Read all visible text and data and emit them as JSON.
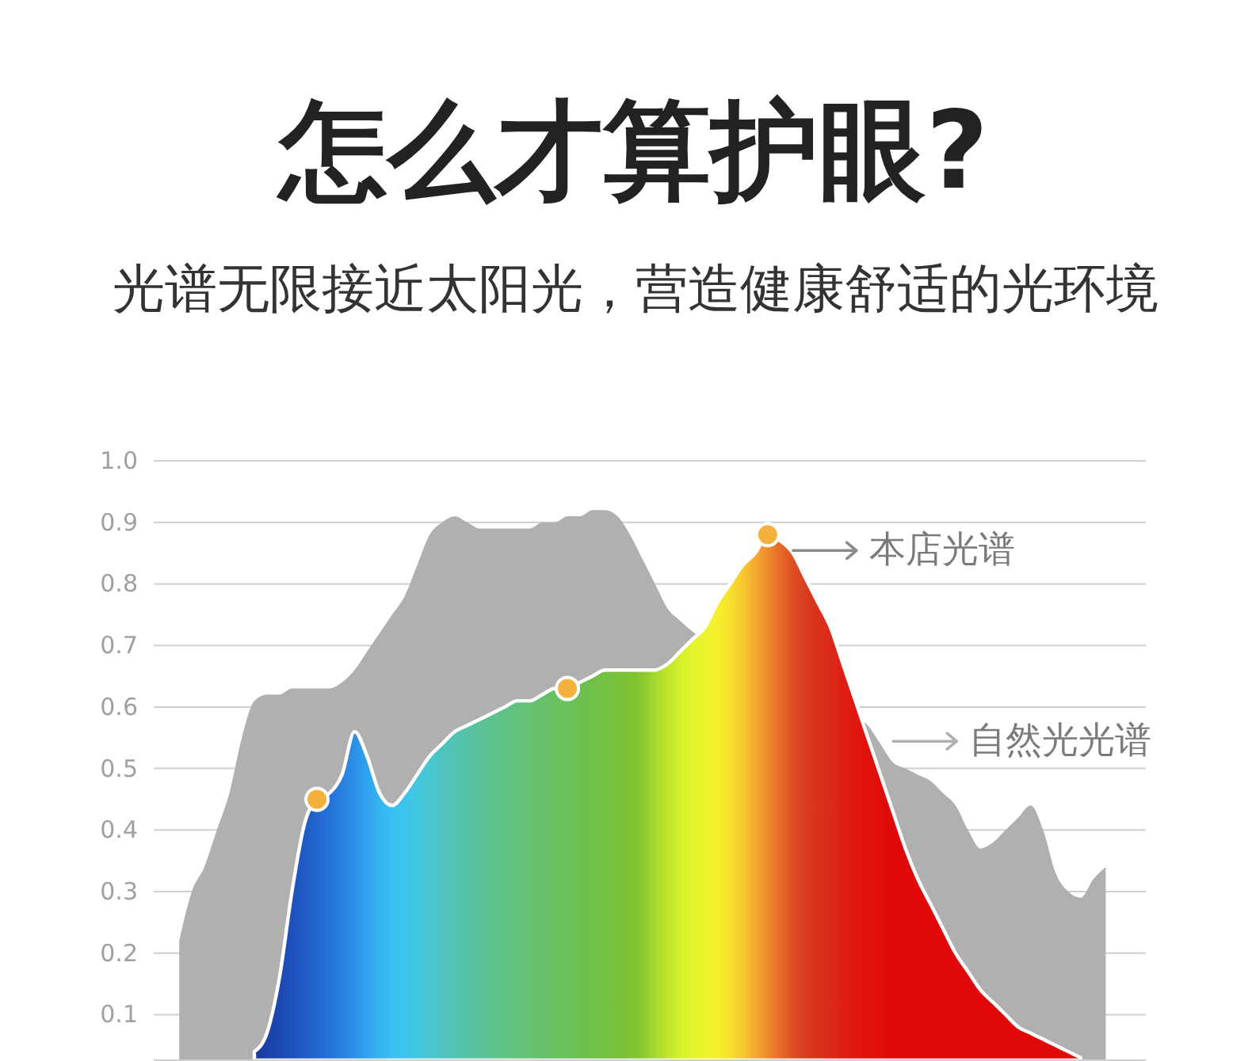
{
  "chart_data": {
    "type": "area",
    "title": "怎么才算护眼?",
    "subtitle": "光谱无限接近太阳光，营造健康舒适的光环境",
    "categories": [
      null,
      null,
      null,
      null,
      null,
      null,
      null,
      null,
      null,
      null,
      null,
      null,
      null,
      null,
      null,
      null,
      null,
      null,
      null,
      null,
      null,
      null,
      null,
      null,
      null,
      null,
      null,
      null,
      null,
      null,
      null,
      null,
      null,
      null,
      null,
      null,
      null,
      null,
      null,
      null,
      null,
      null,
      null,
      null,
      null,
      null,
      null,
      null,
      null,
      null,
      null,
      null,
      null,
      null,
      null,
      null,
      null,
      null,
      null,
      null,
      null,
      null,
      null,
      null,
      null,
      null,
      null,
      null,
      null,
      null,
      null,
      null,
      null,
      null,
      null
    ],
    "ylim": [
      0.026,
      1.0
    ],
    "yticks": [
      0.1,
      0.2,
      0.3,
      0.4,
      0.5,
      0.6,
      0.7,
      0.8,
      0.9,
      {
        "value": 1.0,
        "label": "1.0"
      }
    ],
    "grid": "y",
    "legend": "top right",
    "series": [
      {
        "name": "自然光光谱",
        "color": "#b0b0b0",
        "values": [
          0.22,
          0.3,
          0.34,
          0.4,
          0.46,
          0.55,
          0.61,
          0.62,
          0.62,
          0.63,
          0.63,
          0.63,
          0.63,
          0.64,
          0.66,
          0.69,
          0.72,
          0.75,
          0.78,
          0.83,
          0.88,
          0.9,
          0.91,
          0.9,
          0.89,
          0.89,
          0.89,
          0.89,
          0.89,
          0.9,
          0.9,
          0.91,
          0.91,
          0.92,
          0.92,
          0.91,
          0.88,
          0.84,
          0.8,
          0.76,
          0.74,
          null,
          null,
          null,
          null,
          null,
          null,
          null,
          null,
          null,
          null,
          null,
          null,
          null,
          null,
          0.57,
          0.54,
          0.51,
          0.5,
          0.49,
          0.48,
          0.46,
          0.44,
          0.4,
          0.37,
          0.38,
          0.4,
          0.42,
          0.44,
          0.4,
          0.33,
          0.3,
          0.29,
          0.32,
          0.34
        ]
      },
      {
        "name": "本店光谱",
        "values": [
          null,
          null,
          null,
          null,
          null,
          null,
          0.04,
          0.07,
          0.16,
          0.3,
          0.41,
          0.45,
          0.46,
          0.49,
          0.56,
          0.52,
          0.46,
          0.44,
          0.46,
          0.49,
          0.52,
          0.54,
          0.56,
          0.57,
          0.58,
          0.59,
          0.6,
          0.61,
          0.61,
          0.62,
          0.63,
          0.63,
          0.64,
          0.65,
          0.66,
          0.66,
          0.66,
          0.66,
          0.66,
          0.67,
          0.69,
          0.71,
          0.73,
          0.77,
          0.8,
          0.83,
          0.85,
          0.88,
          0.87,
          0.85,
          0.81,
          0.77,
          0.73,
          0.67,
          0.61,
          0.55,
          0.49,
          0.43,
          0.37,
          0.32,
          0.28,
          0.24,
          0.2,
          0.17,
          0.14,
          0.12,
          0.1,
          0.08,
          0.07,
          0.06,
          0.05,
          0.04,
          0.03,
          null,
          null
        ],
        "colors": [
          null,
          null,
          null,
          null,
          null,
          null,
          "#1a3a9e",
          "#1b40a8",
          "#1c48b2",
          "#1d52bc",
          "#1f5cc6",
          "#2166cf",
          "#2472d8",
          "#2880e0",
          "#2c90e6",
          "#30a2ec",
          "#34b4f0",
          "#38c0f2",
          "#3cc4ee",
          "#42c6e0",
          "#48c6d0",
          "#4ec4c0",
          "#52c4b2",
          "#56c2a4",
          "#5ac298",
          "#5ec28c",
          "#60c282",
          "#62c27a",
          "#64c272",
          "#66c06a",
          "#68c062",
          "#6ac05a",
          "#6cc052",
          "#70c04a",
          "#74c042",
          "#78c03a",
          "#7cc232",
          "#8ac82e",
          "#a4d82c",
          "#c0e62a",
          "#d4f02a",
          "#e2f42c",
          "#eef42e",
          "#f6f02e",
          "#f8e02e",
          "#f6c830",
          "#f4aa30",
          "#ee8a2c",
          "#e66a28",
          "#de4e24",
          "#da3c20",
          "#da321c",
          "#dc2a18",
          "#de2014",
          "#e01810",
          "#e0120c",
          "#e00e0a",
          "#e00808",
          "#e00808",
          "#e00808",
          "#e00808",
          "#e00808",
          "#e00808",
          "#e00808",
          "#e00808",
          "#e00808",
          "#e00808",
          "#e00808",
          "#e00808",
          "#e00808",
          "#e00808",
          "#e00808",
          "#e00808",
          null,
          null
        ]
      },
      {
        "type": "scatter",
        "color": "#f5b13d",
        "marker": "circle",
        "values": [
          null,
          null,
          null,
          null,
          null,
          null,
          null,
          null,
          null,
          null,
          null,
          0.45,
          null,
          null,
          null,
          null,
          null,
          null,
          null,
          null,
          null,
          null,
          null,
          null,
          null,
          null,
          null,
          null,
          null,
          null,
          null,
          0.63,
          null,
          null,
          null,
          null,
          null,
          null,
          null,
          null,
          null,
          null,
          null,
          null,
          null,
          null,
          null,
          0.88,
          null,
          null,
          null,
          null,
          null,
          null,
          null,
          null,
          null,
          null,
          null,
          null,
          null,
          null,
          null,
          null,
          null,
          null,
          null,
          null,
          null,
          null,
          null,
          null,
          null,
          null,
          null
        ]
      }
    ]
  }
}
